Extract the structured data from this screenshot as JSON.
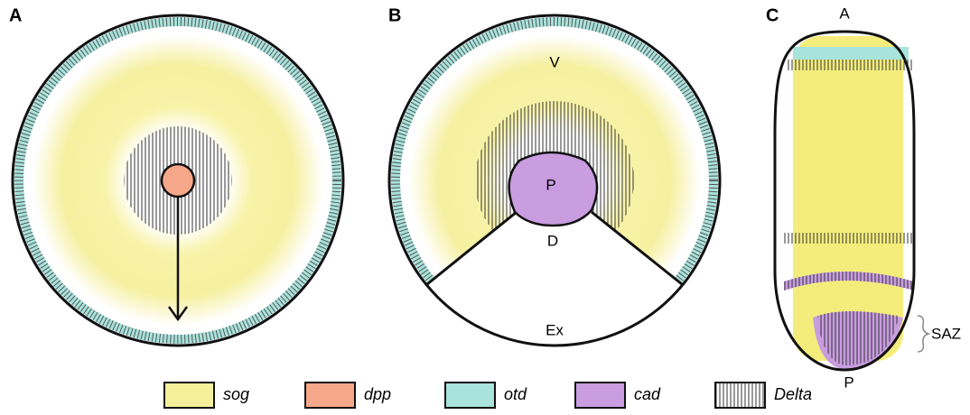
{
  "panels": [
    {
      "label": "A"
    },
    {
      "label": "B",
      "annotations": [
        "V",
        "P",
        "D",
        "Ex"
      ]
    },
    {
      "label": "C",
      "annotations": [
        "A",
        "P",
        "SAZ"
      ]
    }
  ],
  "legend": [
    "sog",
    "dpp",
    "otd",
    "cad",
    "Delta"
  ]
}
